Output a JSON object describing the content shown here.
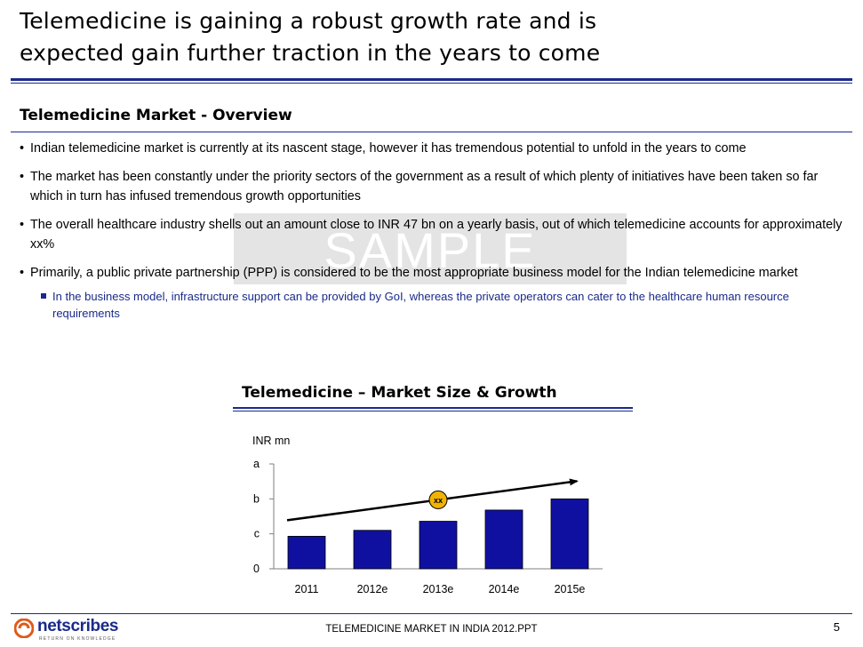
{
  "slide": {
    "title_line1": "Telemedicine is gaining a robust growth rate and is",
    "title_line2": "expected gain further traction in the years to come",
    "section_title": "Telemedicine Market - Overview",
    "bullets": [
      "Indian telemedicine market is currently at its nascent stage, however it has tremendous potential to unfold in the years to come",
      "The market has been constantly under the priority sectors of the government as a result of which plenty of initiatives have been taken so far which in turn has infused tremendous growth opportunities",
      "The overall healthcare industry shells out an amount close to INR 47 bn on a yearly basis, out of which telemedicine accounts for approximately xx%",
      "Primarily, a public private partnership (PPP) is considered to be the most appropriate business model for the Indian telemedicine market"
    ],
    "sub_bullet": "In the business model, infrastructure support can be provided by GoI, whereas the private operators can cater to the healthcare human resource requirements",
    "watermark": "SAMPLE"
  },
  "chart_data": {
    "type": "bar",
    "title": "Telemedicine – Market Size & Growth",
    "ylabel": "INR mn",
    "categories": [
      "2011",
      "2012e",
      "2013e",
      "2014e",
      "2015e"
    ],
    "values": [
      0.93,
      1.1,
      1.36,
      1.68,
      2.0
    ],
    "ytick_labels": [
      "0",
      "c",
      "b",
      "a"
    ],
    "ylim": [
      0,
      3
    ],
    "bar_color": "#1010a0",
    "growth_label": "xx",
    "growth_badge_color": "#f0b400",
    "grid": false,
    "legend": "none"
  },
  "footer": {
    "logo_text": "netscribes",
    "logo_tagline": "RETURN ON KNOWLEDGE",
    "center_text": "TELEMEDICINE MARKET IN INDIA 2012.PPT",
    "page_number": "5"
  },
  "colors": {
    "accent": "#1a2a8a",
    "logo_orange": "#e05a1a"
  },
  "icons": [
    "netscribes-logo-icon",
    "bullet-icon",
    "square-bullet-icon"
  ]
}
